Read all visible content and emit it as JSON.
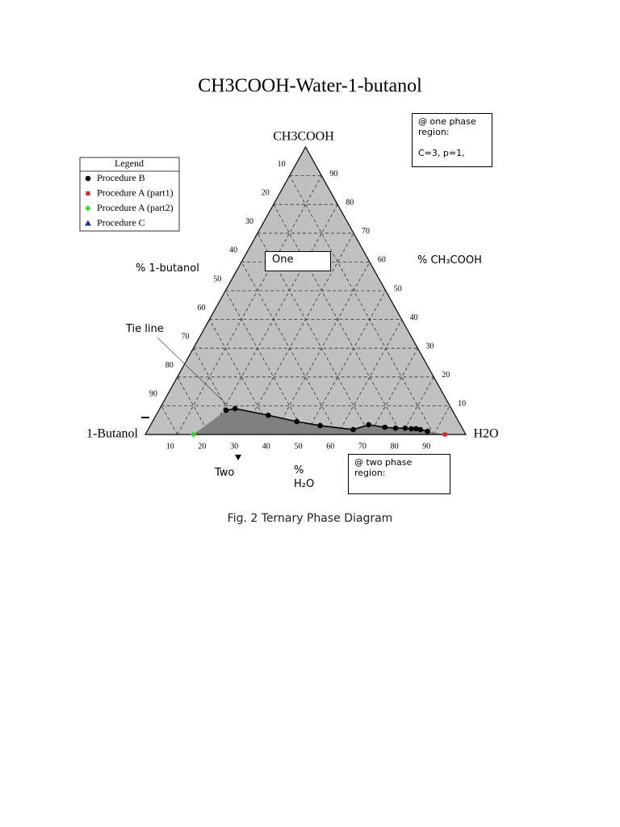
{
  "caption": "Fig. 2 Ternary Phase Diagram",
  "annotations": {
    "one_phase_box": [
      "@ one phase",
      "region:",
      "C=3, p=1,"
    ],
    "one": "One",
    "butanol_axis": "% 1-butanol",
    "acid_axis": "%  CH₃COOH",
    "tie_line": "Tie line",
    "two": "Two",
    "water_percent": "%",
    "water_label": "H₂O",
    "two_phase_box": [
      "@ two phase",
      "region:"
    ]
  },
  "chart_data": {
    "type": "ternary",
    "title": "CH3COOH-Water-1-butanol",
    "vertices": {
      "top": "CH3COOH",
      "left": "1-Butanol",
      "right": "H2O"
    },
    "legend_title": "Legend",
    "grid": true,
    "ticks": {
      "ch3cooh": [
        10,
        20,
        30,
        40,
        50,
        60,
        70,
        80,
        90
      ],
      "butanol": [
        10,
        20,
        30,
        40,
        50,
        60,
        70,
        80,
        90
      ],
      "h2o": [
        10,
        20,
        30,
        40,
        50,
        60,
        70,
        80,
        90
      ]
    },
    "series": [
      {
        "name": "Procedure B",
        "color": "#000000",
        "marker": "circle",
        "line": true,
        "h2o": [
          21,
          23.5,
          35,
          45,
          53,
          64,
          68,
          73.5,
          77,
          80,
          82,
          83.5,
          85,
          87.5
        ],
        "ch3cooh": [
          8.4,
          9,
          6.7,
          4.5,
          3.1,
          1.7,
          3.4,
          2.5,
          2.2,
          2.2,
          2,
          2,
          1.7,
          1.1
        ]
      },
      {
        "name": "Procedure A (part1)",
        "color": "#e0201c",
        "marker": "square",
        "h2o": [
          93.5
        ],
        "ch3cooh": [
          0
        ]
      },
      {
        "name": "Procedure A (part2)",
        "color": "#22dd22",
        "marker": "diamond",
        "h2o": [
          15
        ],
        "ch3cooh": [
          0
        ]
      },
      {
        "name": "Procedure C",
        "color": "#1a2fb5",
        "marker": "triangle",
        "h2o": [],
        "ch3cooh": []
      }
    ]
  }
}
